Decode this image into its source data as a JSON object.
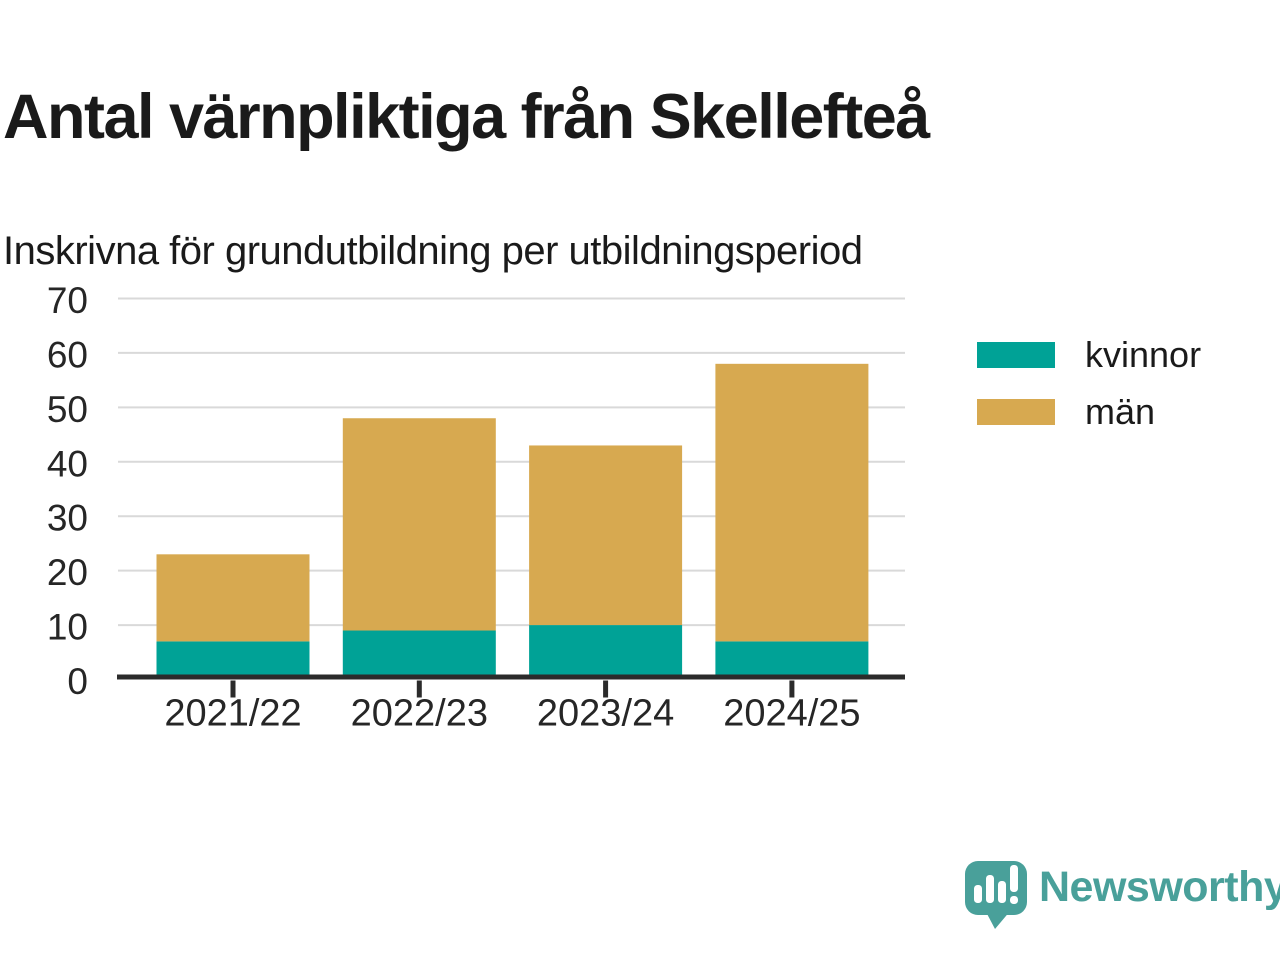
{
  "header": {
    "title": "Antal värnpliktiga från Skellefteå",
    "subtitle": "Inskrivna för grundutbildning per utbildningsperiod"
  },
  "chart_data": {
    "type": "bar",
    "stacked": true,
    "title": "Antal värnpliktiga från Skellefteå",
    "subtitle": "Inskrivna för grundutbildning per utbildningsperiod",
    "categories": [
      "2021/22",
      "2022/23",
      "2023/24",
      "2024/25"
    ],
    "series": [
      {
        "name": "kvinnor",
        "color": "#00a296",
        "values": [
          7,
          9,
          10,
          7
        ]
      },
      {
        "name": "män",
        "color": "#d7a950",
        "values": [
          16,
          39,
          33,
          51
        ]
      }
    ],
    "totals": [
      23,
      48,
      43,
      58
    ],
    "xlabel": "",
    "ylabel": "",
    "ylim": [
      0,
      70
    ],
    "yticks": [
      0,
      10,
      20,
      30,
      40,
      50,
      60,
      70
    ],
    "grid": true,
    "grid_color": "#d9d9d9",
    "axis_color": "#2b2b2b",
    "tick_label_color": "#262626",
    "legend_position": "right"
  },
  "footer": {
    "brand": "Newsworthy",
    "brand_color": "#49a09a",
    "logo_icon": "bar-chart-speech-bubble-icon"
  }
}
